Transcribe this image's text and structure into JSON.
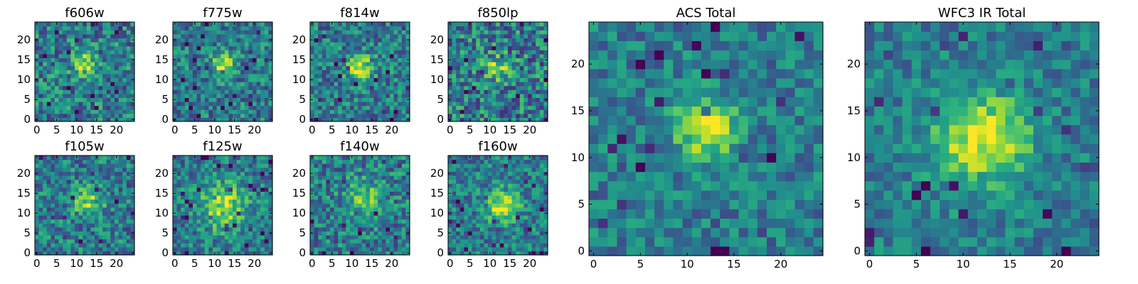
{
  "chart_data": [
    {
      "type": "heatmap",
      "title": "f606w",
      "grid_size": 25,
      "center": [
        12,
        14
      ],
      "peak": 0.45,
      "sigma": 2.0,
      "noise": 0.55,
      "seed": 11,
      "xticks": [
        0,
        5,
        10,
        15,
        20
      ],
      "yticks": [
        0,
        5,
        10,
        15,
        20
      ],
      "xlim": [
        -0.5,
        24.5
      ],
      "ylim": [
        -0.5,
        24.5
      ]
    },
    {
      "type": "heatmap",
      "title": "f775w",
      "grid_size": 25,
      "center": [
        12,
        14
      ],
      "peak": 0.45,
      "sigma": 2.0,
      "noise": 0.5,
      "seed": 23,
      "xticks": [
        0,
        5,
        10,
        15,
        20
      ],
      "yticks": [
        0,
        5,
        10,
        15,
        20
      ],
      "xlim": [
        -0.5,
        24.5
      ],
      "ylim": [
        -0.5,
        24.5
      ]
    },
    {
      "type": "heatmap",
      "title": "f814w",
      "grid_size": 25,
      "center": [
        12,
        13
      ],
      "peak": 0.55,
      "sigma": 2.2,
      "noise": 0.5,
      "seed": 37,
      "xticks": [
        0,
        5,
        10,
        15,
        20
      ],
      "yticks": [
        0,
        5,
        10,
        15,
        20
      ],
      "xlim": [
        -0.5,
        24.5
      ],
      "ylim": [
        -0.5,
        24.5
      ]
    },
    {
      "type": "heatmap",
      "title": "f850lp",
      "grid_size": 25,
      "center": [
        12,
        13
      ],
      "peak": 0.35,
      "sigma": 2.2,
      "noise": 0.6,
      "seed": 41,
      "xticks": [
        0,
        5,
        10,
        15,
        20
      ],
      "yticks": [
        0,
        5,
        10,
        15,
        20
      ],
      "xlim": [
        -0.5,
        24.5
      ],
      "ylim": [
        -0.5,
        24.5
      ]
    },
    {
      "type": "heatmap",
      "title": "f105w",
      "grid_size": 25,
      "center": [
        13,
        13
      ],
      "peak": 0.4,
      "sigma": 2.5,
      "noise": 0.5,
      "seed": 53,
      "xticks": [
        0,
        5,
        10,
        15,
        20
      ],
      "yticks": [
        0,
        5,
        10,
        15,
        20
      ],
      "xlim": [
        -0.5,
        24.5
      ],
      "ylim": [
        -0.5,
        24.5
      ]
    },
    {
      "type": "heatmap",
      "title": "f125w",
      "grid_size": 25,
      "center": [
        12,
        12
      ],
      "peak": 0.45,
      "sigma": 4.0,
      "noise": 0.45,
      "seed": 67,
      "xticks": [
        0,
        5,
        10,
        15,
        20
      ],
      "yticks": [
        0,
        5,
        10,
        15,
        20
      ],
      "xlim": [
        -0.5,
        24.5
      ],
      "ylim": [
        -0.5,
        24.5
      ]
    },
    {
      "type": "heatmap",
      "title": "f140w",
      "grid_size": 25,
      "center": [
        13,
        14
      ],
      "peak": 0.35,
      "sigma": 3.0,
      "noise": 0.5,
      "seed": 79,
      "xticks": [
        0,
        5,
        10,
        15,
        20
      ],
      "yticks": [
        0,
        5,
        10,
        15,
        20
      ],
      "xlim": [
        -0.5,
        24.5
      ],
      "ylim": [
        -0.5,
        24.5
      ]
    },
    {
      "type": "heatmap",
      "title": "f160w",
      "grid_size": 25,
      "center": [
        13,
        12
      ],
      "peak": 0.5,
      "sigma": 2.8,
      "noise": 0.45,
      "seed": 83,
      "xticks": [
        0,
        5,
        10,
        15,
        20
      ],
      "yticks": [
        0,
        5,
        10,
        15,
        20
      ],
      "xlim": [
        -0.5,
        24.5
      ],
      "ylim": [
        -0.5,
        24.5
      ]
    },
    {
      "type": "heatmap",
      "title": "ACS Total",
      "grid_size": 25,
      "center": [
        12,
        13
      ],
      "peak": 0.55,
      "sigma": 2.2,
      "noise": 0.38,
      "seed": 97,
      "xticks": [
        0,
        5,
        10,
        15,
        20
      ],
      "yticks": [
        0,
        5,
        10,
        15,
        20
      ],
      "xlim": [
        -0.5,
        24.5
      ],
      "ylim": [
        -0.5,
        24.5
      ]
    },
    {
      "type": "heatmap",
      "title": "WFC3 IR Total",
      "grid_size": 25,
      "center": [
        12,
        12
      ],
      "peak": 0.55,
      "sigma": 3.5,
      "noise": 0.35,
      "seed": 101,
      "xticks": [
        0,
        5,
        10,
        15,
        20
      ],
      "yticks": [
        0,
        5,
        10,
        15,
        20
      ],
      "xlim": [
        -0.5,
        24.5
      ],
      "ylim": [
        -0.5,
        24.5
      ]
    }
  ],
  "colormap": [
    "#440154",
    "#472d7b",
    "#3b528b",
    "#2c728e",
    "#21918c",
    "#28ae80",
    "#5ec962",
    "#addc30",
    "#fde725"
  ]
}
